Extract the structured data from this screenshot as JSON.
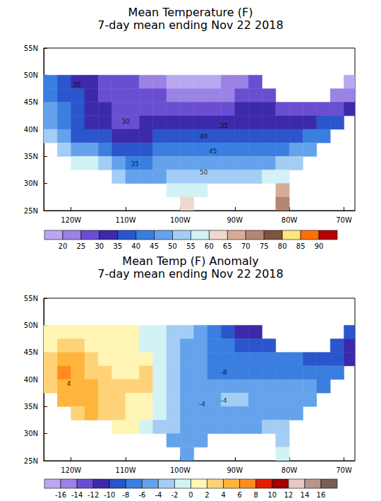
{
  "chart_data": [
    {
      "type": "heatmap",
      "title": "Mean Temperature (F)",
      "subtitle": "7-day mean ending Nov 22 2018",
      "xlim": [
        -125,
        -68
      ],
      "xticks": [
        {
          "value": -120,
          "label": "120W"
        },
        {
          "value": -110,
          "label": "110W"
        },
        {
          "value": -100,
          "label": "100W"
        },
        {
          "value": -90,
          "label": "90W"
        },
        {
          "value": -80,
          "label": "80W"
        },
        {
          "value": -70,
          "label": "70W"
        }
      ],
      "ylim": [
        25,
        55
      ],
      "yticks": [
        {
          "value": 25,
          "label": "25N"
        },
        {
          "value": 30,
          "label": "30N"
        },
        {
          "value": 35,
          "label": "35N"
        },
        {
          "value": 40,
          "label": "40N"
        },
        {
          "value": 45,
          "label": "45N"
        },
        {
          "value": 50,
          "label": "50N"
        },
        {
          "value": 55,
          "label": "55N"
        }
      ],
      "grid": false,
      "cells": {
        "lon": [
          -123.75,
          -121.25,
          -118.75,
          -116.25,
          -113.75,
          -111.25,
          -108.75,
          -106.25,
          -103.75,
          -101.25,
          -98.75,
          -96.25,
          -93.75,
          -91.25,
          -88.75,
          -86.25,
          -83.75,
          -81.25,
          -78.75,
          -76.25,
          -73.75,
          -71.25,
          -68.75
        ],
        "lat": [
          48.75,
          46.25,
          43.75,
          41.25,
          38.75,
          36.25,
          33.75,
          31.25,
          28.75,
          26.25
        ],
        "values": [
          [
            42,
            35,
            33,
            30,
            28,
            26,
            25,
            24,
            22,
            19,
            18,
            17,
            18,
            20,
            24,
            25,
            null,
            null,
            null,
            null,
            null,
            null,
            18
          ],
          [
            44,
            38,
            35,
            31,
            28,
            27,
            27,
            27,
            25,
            23,
            22,
            21,
            22,
            24,
            27,
            28,
            28,
            null,
            null,
            null,
            null,
            23,
            21
          ],
          [
            46,
            40,
            36,
            32,
            30,
            28,
            28,
            29,
            29,
            28,
            27,
            26,
            26,
            28,
            30,
            30,
            30,
            29,
            28,
            27,
            27,
            28,
            30
          ],
          [
            48,
            42,
            35,
            32,
            31,
            29,
            28,
            30,
            32,
            33,
            32,
            31,
            31,
            32,
            33,
            33,
            33,
            33,
            33,
            34,
            36,
            38,
            null
          ],
          [
            52,
            47,
            38,
            36,
            36,
            33,
            32,
            31,
            35,
            37,
            37,
            38,
            38,
            38,
            38,
            38,
            38,
            38,
            39,
            41,
            42,
            null,
            null
          ],
          [
            null,
            52,
            45,
            45,
            40,
            37,
            36,
            36,
            40,
            42,
            43,
            43,
            43,
            43,
            43,
            44,
            43,
            43,
            45,
            46,
            null,
            null,
            null
          ],
          [
            null,
            null,
            55,
            55,
            52,
            45,
            40,
            40,
            45,
            46,
            48,
            49,
            48,
            48,
            48,
            49,
            49,
            51,
            52,
            null,
            null,
            null,
            null
          ],
          [
            null,
            null,
            null,
            null,
            null,
            52,
            48,
            47,
            48,
            50,
            52,
            53,
            54,
            54,
            54,
            54,
            56,
            57,
            null,
            null,
            null,
            null,
            null
          ],
          [
            null,
            null,
            null,
            null,
            null,
            null,
            null,
            null,
            null,
            55,
            57,
            58,
            null,
            null,
            null,
            null,
            null,
            65,
            null,
            null,
            null,
            null,
            null
          ],
          [
            null,
            null,
            null,
            null,
            null,
            null,
            null,
            null,
            null,
            null,
            62,
            null,
            null,
            null,
            null,
            null,
            null,
            72,
            null,
            null,
            null,
            null,
            null
          ]
        ]
      },
      "colorbar": {
        "levels": [
          20,
          25,
          30,
          35,
          40,
          45,
          50,
          55,
          60,
          65,
          70,
          75,
          80,
          85,
          90
        ],
        "colors": [
          "#b9a8f0",
          "#9a82e6",
          "#6a4ed2",
          "#3c2aaa",
          "#2a55cc",
          "#3a7ee0",
          "#64a2ec",
          "#a4cdf5",
          "#d2f2f5",
          "#f0d8cc",
          "#d6ac98",
          "#b48670",
          "#7c5440",
          "#ffe680",
          "#ff6e00",
          "#b40000"
        ]
      },
      "annotations": [
        {
          "text": "35",
          "x": -118.9,
          "y": 48.2
        },
        {
          "text": "30",
          "x": -110,
          "y": 41.4
        },
        {
          "text": "35",
          "x": -108.3,
          "y": 33.6
        },
        {
          "text": "35",
          "x": -92,
          "y": 40.7
        },
        {
          "text": "40",
          "x": -95.7,
          "y": 38.7
        },
        {
          "text": "45",
          "x": -94,
          "y": 36
        },
        {
          "text": "50",
          "x": -95.7,
          "y": 32
        }
      ]
    },
    {
      "type": "heatmap",
      "title": "Mean Temp (F) Anomaly",
      "subtitle": "7-day mean ending Nov 22 2018",
      "xlim": [
        -125,
        -68
      ],
      "xticks": [
        {
          "value": -120,
          "label": "120W"
        },
        {
          "value": -110,
          "label": "110W"
        },
        {
          "value": -100,
          "label": "100W"
        },
        {
          "value": -90,
          "label": "90W"
        },
        {
          "value": -80,
          "label": "80W"
        },
        {
          "value": -70,
          "label": "70W"
        }
      ],
      "ylim": [
        25,
        55
      ],
      "yticks": [
        {
          "value": 25,
          "label": "25N"
        },
        {
          "value": 30,
          "label": "30N"
        },
        {
          "value": 35,
          "label": "35N"
        },
        {
          "value": 40,
          "label": "40N"
        },
        {
          "value": 45,
          "label": "45N"
        },
        {
          "value": 50,
          "label": "50N"
        },
        {
          "value": 55,
          "label": "55N"
        }
      ],
      "grid": false,
      "cells": {
        "lon": [
          -123.75,
          -121.25,
          -118.75,
          -116.25,
          -113.75,
          -111.25,
          -108.75,
          -106.25,
          -103.75,
          -101.25,
          -98.75,
          -96.25,
          -93.75,
          -91.25,
          -88.75,
          -86.25,
          -83.75,
          -81.25,
          -78.75,
          -76.25,
          -73.75,
          -71.25,
          -68.75
        ],
        "lat": [
          48.75,
          46.25,
          43.75,
          41.25,
          38.75,
          36.25,
          33.75,
          31.25,
          28.75,
          26.25
        ],
        "values": [
          [
            0,
            1,
            1,
            0,
            1,
            1,
            0,
            -1,
            -2,
            -3,
            -4,
            -6,
            -8,
            -10,
            -11,
            -11,
            null,
            null,
            null,
            null,
            null,
            null,
            -10
          ],
          [
            1,
            3,
            2,
            1,
            1,
            1,
            0,
            -1,
            -2,
            -4,
            -5,
            -6,
            -7,
            -8,
            -10,
            -10,
            -9,
            null,
            null,
            null,
            null,
            -10,
            -12
          ],
          [
            2,
            5,
            4,
            2,
            1,
            1,
            0,
            0,
            -1,
            -4,
            -5,
            -6,
            -7,
            -7,
            -8,
            -8,
            -8,
            -8,
            -8,
            -9,
            -9,
            -10,
            -11
          ],
          [
            3,
            6,
            5,
            3,
            2,
            1,
            1,
            2,
            -1,
            -4,
            -5,
            -6,
            -7,
            -8,
            -8,
            -7,
            -7,
            -7,
            -7,
            -8,
            -8,
            -8,
            null
          ],
          [
            3,
            5,
            5,
            4,
            2,
            2,
            2,
            2,
            -1,
            -4,
            -5,
            -5,
            -6,
            -6,
            -6,
            -6,
            -6,
            -6,
            -6,
            -6,
            -7,
            null,
            null
          ],
          [
            null,
            4,
            4,
            4,
            3,
            2,
            1,
            0,
            -2,
            -4,
            -5,
            -5,
            -5,
            -4,
            -4,
            -5,
            -5,
            -5,
            -5,
            -6,
            null,
            null,
            null
          ],
          [
            null,
            null,
            3,
            4,
            3,
            2,
            1,
            0,
            -2,
            -4,
            -5,
            -5,
            -5,
            -5,
            -5,
            -5,
            -5,
            -5,
            -5,
            null,
            null,
            null,
            null
          ],
          [
            null,
            null,
            null,
            null,
            null,
            1,
            0,
            -1,
            -3,
            -4,
            -5,
            -5,
            -5,
            -5,
            -5,
            -5,
            -4,
            -4,
            null,
            null,
            null,
            null,
            null
          ],
          [
            null,
            null,
            null,
            null,
            null,
            null,
            null,
            null,
            null,
            -5,
            -5,
            -6,
            null,
            null,
            null,
            null,
            null,
            -3,
            null,
            null,
            null,
            null,
            null
          ],
          [
            null,
            null,
            null,
            null,
            null,
            null,
            null,
            null,
            null,
            null,
            -5,
            null,
            null,
            null,
            null,
            null,
            null,
            -2,
            null,
            null,
            null,
            null,
            null
          ]
        ]
      },
      "colorbar": {
        "levels": [
          -16,
          -14,
          -12,
          -10,
          -8,
          -6,
          -4,
          -2,
          0,
          2,
          4,
          6,
          8,
          10,
          12,
          14,
          16
        ],
        "colors": [
          "#b9a8f0",
          "#9a82e6",
          "#6a4ed2",
          "#3c2aaa",
          "#2a55cc",
          "#3a7ee0",
          "#64a2ec",
          "#a4cdf5",
          "#d2f2f5",
          "#fff5b4",
          "#ffd278",
          "#ffb43c",
          "#ff8c1e",
          "#e61e00",
          "#a00000",
          "#ebc8c8",
          "#b4968c",
          "#786050"
        ]
      },
      "annotations": [
        {
          "text": "-8",
          "x": -92,
          "y": 41.3
        },
        {
          "text": "-4",
          "x": -92,
          "y": 36.1
        },
        {
          "text": "-4",
          "x": -96,
          "y": 35.4
        },
        {
          "text": "4",
          "x": -120.4,
          "y": 39.2
        }
      ]
    }
  ]
}
